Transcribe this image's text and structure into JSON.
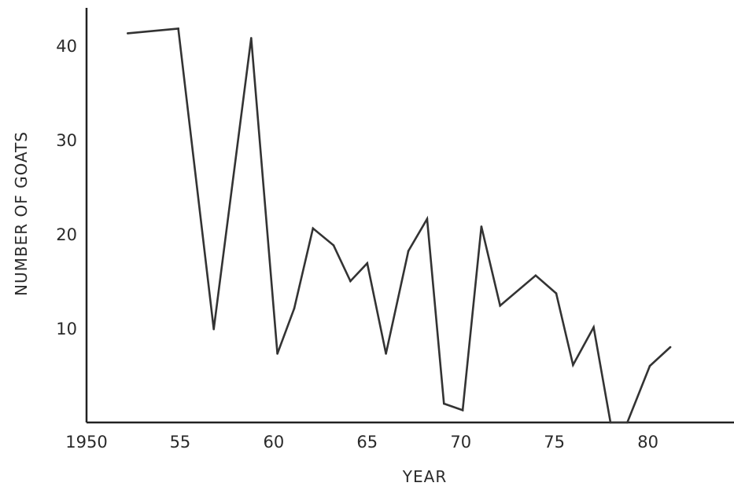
{
  "chart_data": {
    "type": "line",
    "title": "",
    "xlabel": "YEAR",
    "ylabel": "NUMBER OF GOATS",
    "xlim": [
      1950,
      1984.6
    ],
    "ylim": [
      0,
      44
    ],
    "xticks": [
      {
        "value": 1950,
        "label": "1950"
      },
      {
        "value": 1955,
        "label": "55"
      },
      {
        "value": 1960,
        "label": "60"
      },
      {
        "value": 1965,
        "label": "65"
      },
      {
        "value": 1970,
        "label": "70"
      },
      {
        "value": 1975,
        "label": "75"
      },
      {
        "value": 1980,
        "label": "80"
      }
    ],
    "yticks": [
      {
        "value": 10,
        "label": "10"
      },
      {
        "value": 20,
        "label": "20"
      },
      {
        "value": 30,
        "label": "30"
      },
      {
        "value": 40,
        "label": "40"
      }
    ],
    "grid": false,
    "line_color": "#333333",
    "axis_color": "#222222",
    "series": [
      {
        "x": [
          1952.2,
          1954.9,
          1956.8,
          1958.8,
          1960.2,
          1961.1,
          1962.1,
          1963.2,
          1964.1,
          1965.0,
          1966.0,
          1967.2,
          1968.2,
          1969.1,
          1970.1,
          1971.1,
          1972.1,
          1974.0,
          1975.1,
          1976.0,
          1977.1,
          1978.0,
          1978.9,
          1980.1,
          1981.2
        ],
        "y": [
          41.3,
          41.8,
          9.9,
          40.8,
          7.3,
          12.1,
          20.6,
          18.8,
          15.0,
          16.9,
          7.3,
          18.2,
          21.6,
          2.0,
          1.3,
          20.8,
          12.4,
          15.6,
          13.7,
          6.1,
          10.1,
          0.0,
          0.0,
          6.0,
          8.0
        ]
      }
    ]
  }
}
